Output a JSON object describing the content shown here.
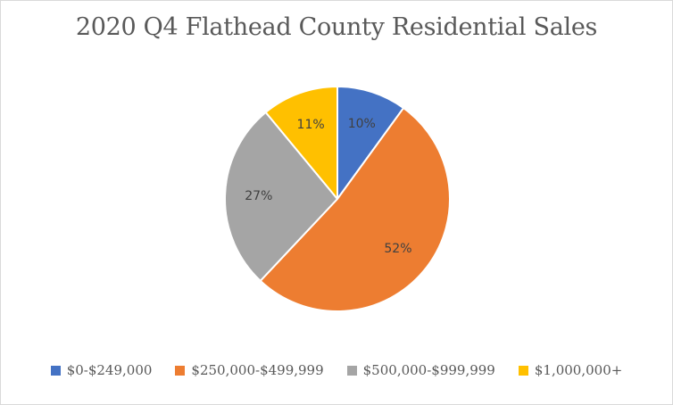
{
  "chart_data": {
    "type": "pie",
    "title": "2020 Q4 Flathead County Residential Sales",
    "start_angle_deg": 0,
    "direction": "clockwise",
    "legend_position": "bottom",
    "slices": [
      {
        "label": "$0-$249,000",
        "value": 10,
        "display": "10%",
        "color": "#4472C4"
      },
      {
        "label": "$250,000-$499,999",
        "value": 52,
        "display": "52%",
        "color": "#ED7D31"
      },
      {
        "label": "$500,000-$999,999",
        "value": 27,
        "display": "27%",
        "color": "#A5A5A5"
      },
      {
        "label": "$1,000,000+",
        "value": 11,
        "display": "11%",
        "color": "#FFC000"
      }
    ]
  }
}
